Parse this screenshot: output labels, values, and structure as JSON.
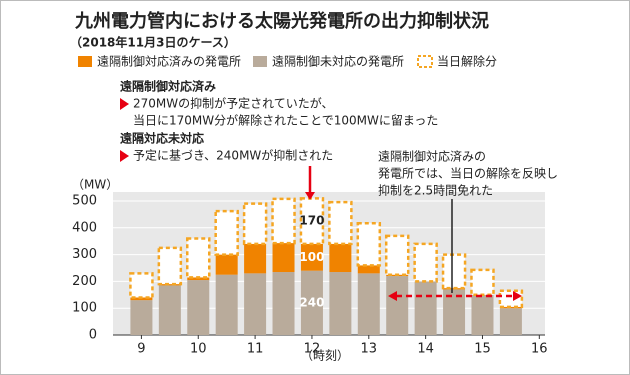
{
  "chart_data": {
    "type": "stacked_bar",
    "title": "九州電力管内における太陽光発電所の出力抑制状況",
    "subtitle": "（2018年11月3日のケース）",
    "y_label": "（MW）",
    "x_label": "（時刻）",
    "x": [
      9,
      9.5,
      10,
      10.5,
      11,
      11.5,
      12,
      12.5,
      13,
      13.5,
      14,
      14.5,
      15,
      15.5
    ],
    "xlim": [
      8.5,
      16.1
    ],
    "xticks": [
      9,
      10,
      11,
      12,
      13,
      14,
      15,
      16
    ],
    "ylim": [
      0,
      500
    ],
    "yticks": [
      0,
      100,
      200,
      300,
      400,
      500
    ],
    "grid": true,
    "series": [
      {
        "name": "遠隔制御対応済みの発電所",
        "color": "#f08300",
        "values": [
          10,
          5,
          10,
          75,
          110,
          108,
          100,
          105,
          30,
          5,
          0,
          5,
          0,
          5
        ],
        "value_labels": [
          null,
          null,
          null,
          null,
          null,
          null,
          "100",
          null,
          null,
          null,
          null,
          null,
          null,
          null
        ]
      },
      {
        "name": "遠隔制御未対応の発電所",
        "color": "#b9ab9b",
        "values": [
          130,
          185,
          205,
          225,
          230,
          235,
          240,
          235,
          230,
          220,
          200,
          170,
          150,
          100
        ],
        "value_labels": [
          null,
          null,
          null,
          null,
          null,
          null,
          "240",
          null,
          null,
          null,
          null,
          null,
          null,
          null
        ]
      },
      {
        "name": "当日解除分",
        "color": "#f5a623",
        "dashed": true,
        "values": [
          90,
          135,
          145,
          162,
          150,
          165,
          170,
          156,
          157,
          145,
          140,
          125,
          93,
          60
        ],
        "value_labels": [
          null,
          null,
          null,
          null,
          null,
          null,
          "170",
          null,
          null,
          null,
          null,
          null,
          null,
          null
        ]
      }
    ],
    "annotations": {
      "heading1": "遠隔制御対応済み",
      "line1": "270MWの抑制が予定されていたが、",
      "line2": "当日に170MW分が解除されたことで100MWに留まった",
      "heading2": "遠隔対応未対応",
      "line3": "予定に基づき、240MWが抑制された",
      "note": [
        "遠隔制御対応済みの",
        "発電所では、当日の解除を反映し",
        "抑制を2.5時間免れた"
      ]
    }
  }
}
